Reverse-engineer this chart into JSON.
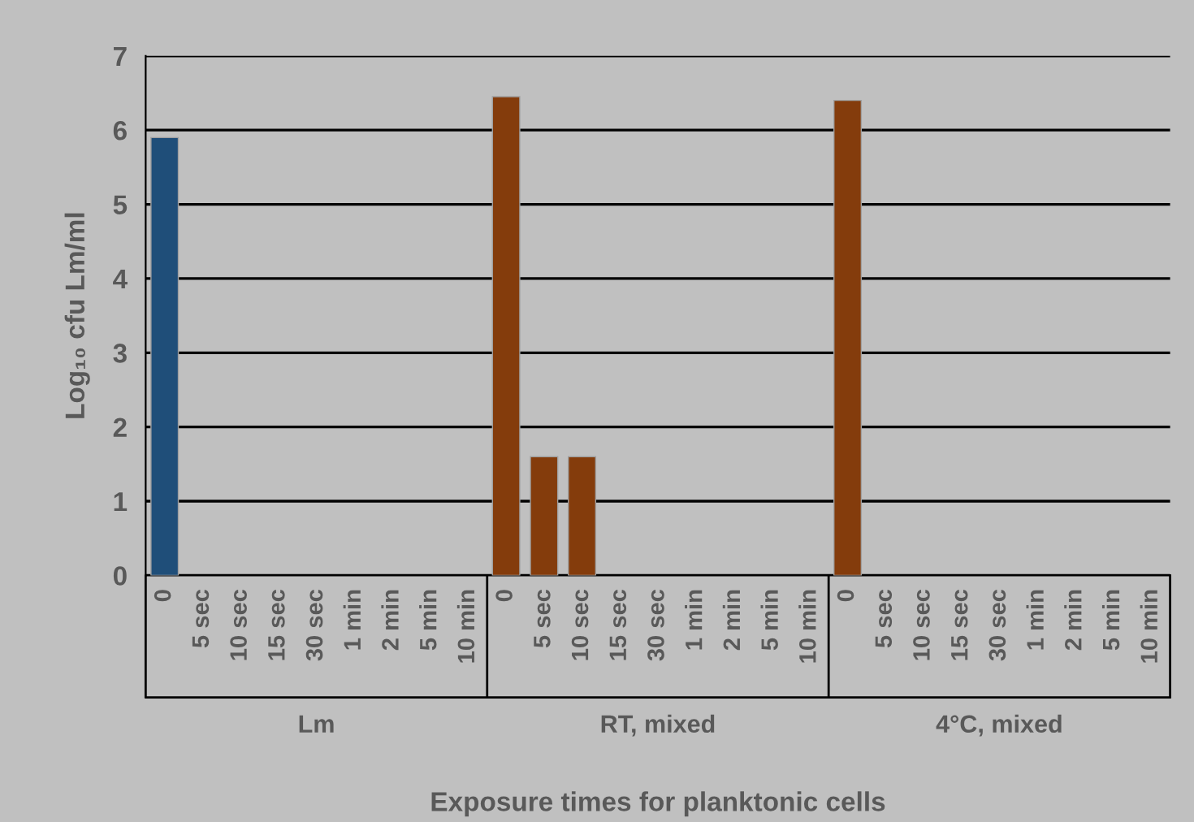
{
  "chart_data": {
    "type": "bar",
    "xlabel": "Exposure times for planktonic cells",
    "ylabel": "Log₁₀ cfu Lm/ml",
    "categories": [
      "0",
      "5 sec",
      "10 sec",
      "15 sec",
      "30 sec",
      "1 min",
      "2 min",
      "5 min",
      "10 min",
      "0",
      "5 sec",
      "10 sec",
      "15 sec",
      "30 sec",
      "1 min",
      "2 min",
      "5 min",
      "10 min",
      "0",
      "5 sec",
      "10 sec",
      "15 sec",
      "30 sec",
      "1 min",
      "2 min",
      "5 min",
      "10 min"
    ],
    "values": [
      5.9,
      null,
      null,
      null,
      null,
      null,
      null,
      null,
      null,
      6.45,
      1.6,
      1.6,
      null,
      null,
      null,
      null,
      null,
      null,
      6.4,
      null,
      null,
      null,
      null,
      null,
      null,
      null,
      null
    ],
    "colors": [
      "#1f4e79",
      "#1f4e79",
      "#1f4e79",
      "#1f4e79",
      "#1f4e79",
      "#1f4e79",
      "#1f4e79",
      "#1f4e79",
      "#1f4e79",
      "#843c0c",
      "#843c0c",
      "#843c0c",
      "#843c0c",
      "#843c0c",
      "#843c0c",
      "#843c0c",
      "#843c0c",
      "#843c0c",
      "#843c0c",
      "#843c0c",
      "#843c0c",
      "#843c0c",
      "#843c0c",
      "#843c0c",
      "#843c0c",
      "#843c0c",
      "#843c0c"
    ],
    "annotations": [
      "Lm",
      "RT, mixed",
      "4°C, mixed"
    ],
    "ylim": [
      0,
      7
    ],
    "yticks": [
      0,
      1,
      2,
      3,
      4,
      5,
      6,
      7
    ],
    "grid": "y",
    "legend": false
  }
}
